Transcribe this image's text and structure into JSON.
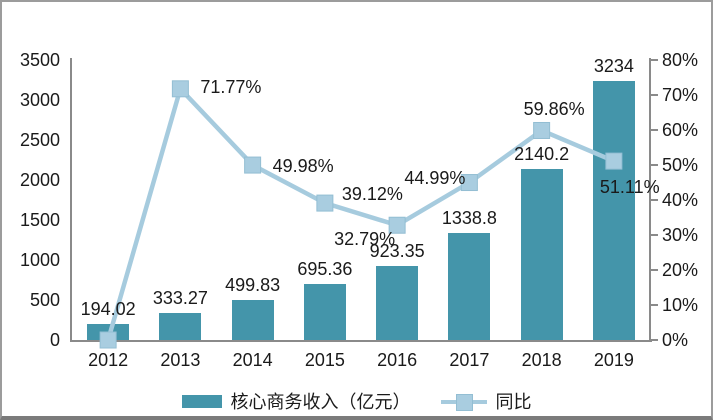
{
  "chart": {
    "legend": [
      {
        "label": "核心商务收入（亿元）",
        "type": "bar"
      },
      {
        "label": "同比",
        "type": "line"
      }
    ],
    "colors": {
      "bar": "#4495aa",
      "line": "#a6cbde",
      "marker_fill": "#a9cde0",
      "marker_stroke": "#93bed3",
      "axis": "#8a8a8a",
      "text": "#1a1a1a"
    }
  },
  "chart_data": {
    "type": "combo",
    "categories": [
      "2012",
      "2013",
      "2014",
      "2015",
      "2016",
      "2017",
      "2018",
      "2019"
    ],
    "series": [
      {
        "name": "核心商务收入（亿元）",
        "type": "bar",
        "axis": "left",
        "values": [
          194.02,
          333.27,
          499.83,
          695.36,
          923.35,
          1338.8,
          2140.2,
          3234
        ],
        "labels": [
          "194.02",
          "333.27",
          "499.83",
          "695.36",
          "923.35",
          "1338.8",
          "2140.2",
          "3234"
        ]
      },
      {
        "name": "同比",
        "type": "line",
        "axis": "right",
        "values": [
          0,
          71.77,
          49.98,
          39.12,
          32.79,
          44.99,
          59.86,
          51.11
        ],
        "labels": [
          "",
          "71.77%",
          "49.98%",
          "39.12%",
          "32.79%",
          "44.99%",
          "59.86%",
          "51.11%"
        ]
      }
    ],
    "left_axis": {
      "min": 0,
      "max": 3500,
      "step": 500,
      "labels": [
        "0",
        "500",
        "1000",
        "1500",
        "2000",
        "2500",
        "3000",
        "3500"
      ]
    },
    "right_axis": {
      "min": 0,
      "max": 80,
      "step": 10,
      "labels": [
        "0%",
        "10%",
        "20%",
        "30%",
        "40%",
        "50%",
        "60%",
        "70%",
        "80%"
      ]
    },
    "grid": false,
    "legend_position": "bottom",
    "title": ""
  }
}
